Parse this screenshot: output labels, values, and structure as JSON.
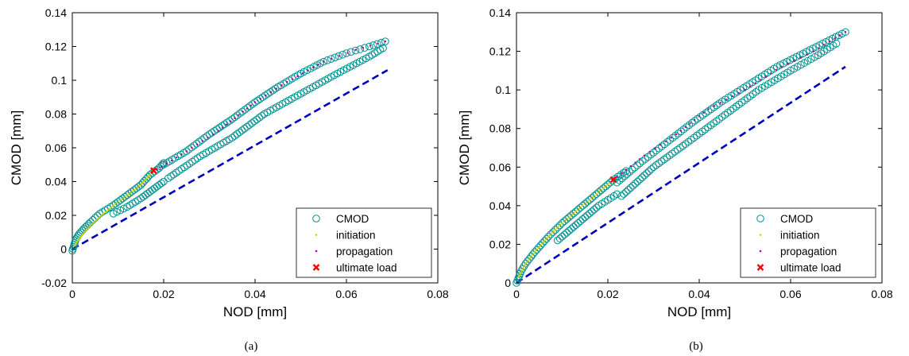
{
  "legend": {
    "cmod": "CMOD",
    "initiation": "initiation",
    "propagation": "propagation",
    "ultimate": "ultimate load"
  },
  "colors": {
    "cmod": "#00918f",
    "initiation": "#c8d400",
    "propagation": "#b000b0",
    "ultimate": "#ff0000",
    "dashed": "#0000c0"
  },
  "chart_data": [
    {
      "type": "scatter",
      "panel_label": "(a)",
      "xlabel": "NOD [mm]",
      "ylabel": "CMOD [mm]",
      "xlim": [
        0,
        0.08
      ],
      "ylim": [
        -0.02,
        0.14
      ],
      "xticks": [
        0,
        0.02,
        0.04,
        0.06,
        0.08
      ],
      "xtick_labels": [
        "0",
        "0.02",
        "0.04",
        "0.06",
        "0.08"
      ],
      "yticks": [
        -0.02,
        0,
        0.02,
        0.04,
        0.06,
        0.08,
        0.1,
        0.12,
        0.14
      ],
      "ytick_labels": [
        "-0.02",
        "0",
        "0.02",
        "0.04",
        "0.06",
        "0.08",
        "0.1",
        "0.12",
        "0.14"
      ],
      "legend_position": "bottom-right",
      "series": [
        {
          "name": "CMOD",
          "marker": "circle",
          "segments": [
            [
              [
                0,
                -0.001
              ],
              [
                0.0008,
                0.006
              ],
              [
                0.0015,
                0.009
              ],
              [
                0.0025,
                0.012
              ],
              [
                0.004,
                0.016
              ],
              [
                0.006,
                0.021
              ],
              [
                0.009,
                0.026
              ],
              [
                0.012,
                0.032
              ],
              [
                0.015,
                0.038
              ],
              [
                0.017,
                0.044
              ],
              [
                0.019,
                0.048
              ],
              [
                0.02,
                0.051
              ]
            ],
            [
              [
                0.009,
                0.021
              ],
              [
                0.012,
                0.025
              ],
              [
                0.015,
                0.03
              ],
              [
                0.018,
                0.036
              ],
              [
                0.02,
                0.04
              ]
            ],
            [
              [
                0.021,
                0.042
              ],
              [
                0.028,
                0.055
              ],
              [
                0.035,
                0.066
              ],
              [
                0.042,
                0.08
              ],
              [
                0.05,
                0.092
              ],
              [
                0.058,
                0.104
              ],
              [
                0.065,
                0.114
              ],
              [
                0.068,
                0.119
              ]
            ],
            [
              [
                0.02,
                0.05
              ],
              [
                0.025,
                0.058
              ],
              [
                0.03,
                0.068
              ],
              [
                0.035,
                0.077
              ],
              [
                0.04,
                0.087
              ],
              [
                0.045,
                0.096
              ],
              [
                0.05,
                0.104
              ],
              [
                0.055,
                0.111
              ],
              [
                0.06,
                0.116
              ],
              [
                0.065,
                0.12
              ],
              [
                0.0685,
                0.123
              ]
            ]
          ]
        },
        {
          "name": "initiation",
          "marker": "dot",
          "segments": [
            [
              [
                0.0005,
                0.002
              ],
              [
                0.002,
                0.008
              ],
              [
                0.004,
                0.014
              ],
              [
                0.006,
                0.019
              ],
              [
                0.009,
                0.026
              ],
              [
                0.012,
                0.032
              ],
              [
                0.015,
                0.038
              ],
              [
                0.017,
                0.044
              ]
            ]
          ]
        },
        {
          "name": "propagation",
          "marker": "dot",
          "segments": [
            [
              [
                0.0185,
                0.047
              ],
              [
                0.025,
                0.058
              ],
              [
                0.032,
                0.07
              ],
              [
                0.04,
                0.087
              ],
              [
                0.047,
                0.099
              ],
              [
                0.055,
                0.111
              ],
              [
                0.062,
                0.118
              ],
              [
                0.0685,
                0.123
              ]
            ]
          ]
        },
        {
          "name": "ultimate load",
          "marker": "x",
          "points": [
            [
              0.0178,
              0.0465
            ]
          ]
        }
      ],
      "dashed_line": [
        [
          0,
          0
        ],
        [
          0.069,
          0.106
        ]
      ]
    },
    {
      "type": "scatter",
      "panel_label": "(b)",
      "xlabel": "NOD [mm]",
      "ylabel": "CMOD [mm]",
      "xlim": [
        0,
        0.08
      ],
      "ylim": [
        0,
        0.14
      ],
      "xticks": [
        0,
        0.02,
        0.04,
        0.06,
        0.08
      ],
      "xtick_labels": [
        "0",
        "0.02",
        "0.04",
        "0.06",
        "0.08"
      ],
      "yticks": [
        0,
        0.02,
        0.04,
        0.06,
        0.08,
        0.1,
        0.12,
        0.14
      ],
      "ytick_labels": [
        "0",
        "0.02",
        "0.04",
        "0.06",
        "0.08",
        "0.1",
        "0.12",
        "0.14"
      ],
      "legend_position": "bottom-right",
      "series": [
        {
          "name": "CMOD",
          "marker": "circle",
          "segments": [
            [
              [
                0,
                0
              ],
              [
                0.001,
                0.006
              ],
              [
                0.002,
                0.01
              ],
              [
                0.004,
                0.016
              ],
              [
                0.007,
                0.024
              ],
              [
                0.01,
                0.031
              ],
              [
                0.013,
                0.037
              ],
              [
                0.016,
                0.043
              ],
              [
                0.019,
                0.049
              ],
              [
                0.021,
                0.053
              ],
              [
                0.024,
                0.058
              ]
            ],
            [
              [
                0.009,
                0.022
              ],
              [
                0.012,
                0.028
              ],
              [
                0.015,
                0.034
              ],
              [
                0.018,
                0.04
              ],
              [
                0.022,
                0.046
              ]
            ],
            [
              [
                0.023,
                0.045
              ],
              [
                0.03,
                0.06
              ],
              [
                0.037,
                0.072
              ],
              [
                0.045,
                0.086
              ],
              [
                0.053,
                0.1
              ],
              [
                0.06,
                0.11
              ],
              [
                0.066,
                0.118
              ],
              [
                0.07,
                0.124
              ]
            ],
            [
              [
                0.022,
                0.052
              ],
              [
                0.027,
                0.062
              ],
              [
                0.033,
                0.073
              ],
              [
                0.039,
                0.084
              ],
              [
                0.045,
                0.094
              ],
              [
                0.051,
                0.103
              ],
              [
                0.057,
                0.112
              ],
              [
                0.062,
                0.118
              ],
              [
                0.067,
                0.124
              ],
              [
                0.072,
                0.13
              ]
            ]
          ]
        },
        {
          "name": "initiation",
          "marker": "dot",
          "segments": [
            [
              [
                0.0005,
                0.003
              ],
              [
                0.002,
                0.01
              ],
              [
                0.004,
                0.016
              ],
              [
                0.007,
                0.024
              ],
              [
                0.01,
                0.031
              ],
              [
                0.013,
                0.037
              ],
              [
                0.016,
                0.043
              ],
              [
                0.019,
                0.049
              ],
              [
                0.021,
                0.053
              ]
            ]
          ]
        },
        {
          "name": "propagation",
          "marker": "dot",
          "segments": [
            [
              [
                0.022,
                0.055
              ],
              [
                0.028,
                0.066
              ],
              [
                0.035,
                0.077
              ],
              [
                0.042,
                0.09
              ],
              [
                0.05,
                0.1
              ],
              [
                0.058,
                0.112
              ],
              [
                0.065,
                0.12
              ],
              [
                0.072,
                0.13
              ]
            ]
          ]
        },
        {
          "name": "ultimate load",
          "marker": "x",
          "points": [
            [
              0.0212,
              0.0535
            ]
          ]
        }
      ],
      "dashed_line": [
        [
          0,
          0
        ],
        [
          0.072,
          0.112
        ]
      ]
    }
  ]
}
